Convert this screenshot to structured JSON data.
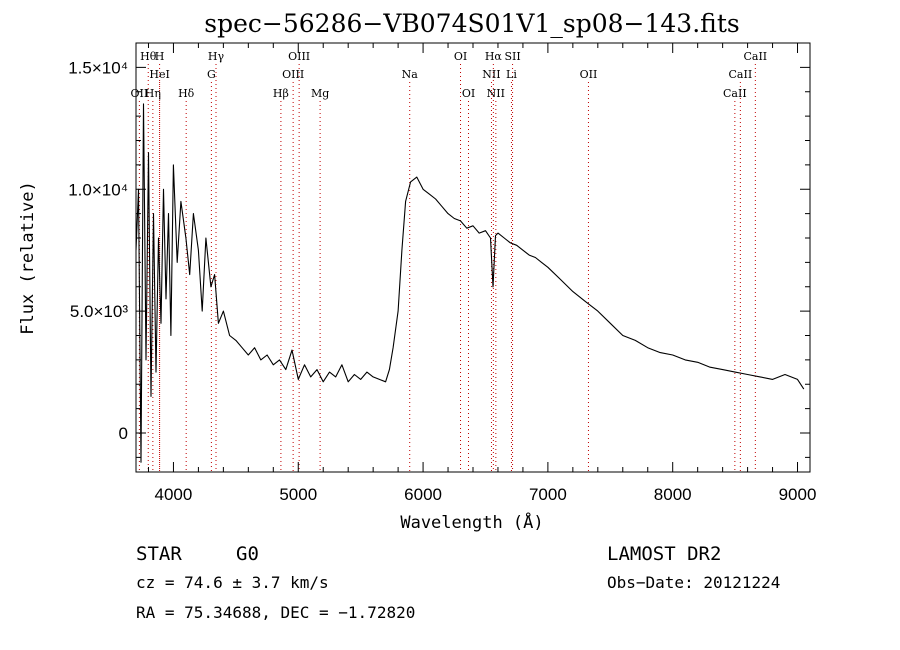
{
  "chart_data": {
    "type": "line",
    "title": "spec−56286−VB074S01V1_sp08−143.fits",
    "xlabel": "Wavelength (Å)",
    "ylabel": "Flux (relative)",
    "xlim": [
      3700,
      9100
    ],
    "ylim": [
      -1600,
      16000
    ],
    "x_ticks": [
      {
        "value": 4000,
        "label": "4000"
      },
      {
        "value": 5000,
        "label": "5000"
      },
      {
        "value": 6000,
        "label": "6000"
      },
      {
        "value": 7000,
        "label": "7000"
      },
      {
        "value": 8000,
        "label": "8000"
      },
      {
        "value": 9000,
        "label": "9000"
      }
    ],
    "y_ticks": [
      {
        "value": 0,
        "label": "0"
      },
      {
        "value": 5000,
        "label": "5.0×10³"
      },
      {
        "value": 10000,
        "label": "1.0×10⁴"
      },
      {
        "value": 15000,
        "label": "1.5×10⁴"
      }
    ],
    "series": [
      {
        "x": [
          3700,
          3720,
          3740,
          3760,
          3780,
          3800,
          3820,
          3840,
          3860,
          3880,
          3900,
          3920,
          3940,
          3960,
          3980,
          4000,
          4030,
          4060,
          4100,
          4130,
          4160,
          4200,
          4230,
          4260,
          4300,
          4330,
          4360,
          4400,
          4450,
          4500,
          4550,
          4600,
          4650,
          4700,
          4750,
          4800,
          4850,
          4900,
          4950,
          5000,
          5050,
          5100,
          5150,
          5200,
          5250,
          5300,
          5350,
          5400,
          5450,
          5500,
          5550,
          5600,
          5650,
          5700,
          5730,
          5760,
          5800,
          5830,
          5860,
          5900,
          5950,
          6000,
          6050,
          6100,
          6150,
          6200,
          6250,
          6300,
          6350,
          6400,
          6450,
          6500,
          6540,
          6560,
          6580,
          6600,
          6650,
          6700,
          6750,
          6800,
          6850,
          6900,
          6950,
          7000,
          7100,
          7200,
          7300,
          7400,
          7500,
          7600,
          7700,
          7800,
          7900,
          8000,
          8100,
          8200,
          8300,
          8400,
          8500,
          8600,
          8700,
          8800,
          8900,
          9000,
          9050
        ],
        "y": [
          7500,
          10000,
          -1200,
          13500,
          3000,
          11500,
          1500,
          9000,
          2500,
          8000,
          4500,
          10000,
          5500,
          9000,
          4000,
          11000,
          7000,
          9500,
          8000,
          6500,
          9000,
          7500,
          5000,
          8000,
          6000,
          6500,
          4500,
          5000,
          4000,
          3800,
          3500,
          3200,
          3500,
          3000,
          3200,
          2800,
          3000,
          2600,
          3400,
          2200,
          2800,
          2300,
          2600,
          2100,
          2500,
          2300,
          2800,
          2100,
          2400,
          2200,
          2500,
          2300,
          2200,
          2100,
          2600,
          3500,
          5000,
          7500,
          9500,
          10300,
          10500,
          10000,
          9800,
          9600,
          9300,
          9000,
          8800,
          8700,
          8400,
          8500,
          8200,
          8300,
          8000,
          6000,
          8100,
          8200,
          8000,
          7800,
          7700,
          7500,
          7300,
          7200,
          7000,
          6800,
          6300,
          5800,
          5400,
          5000,
          4500,
          4000,
          3800,
          3500,
          3300,
          3200,
          3000,
          2900,
          2700,
          2600,
          2500,
          2400,
          2300,
          2200,
          2400,
          2200,
          1800
        ]
      }
    ],
    "lines": [
      {
        "label": "Hθ",
        "wave": 3798,
        "row": 0
      },
      {
        "label": "H",
        "wave": 3889,
        "row": 0
      },
      {
        "label": "Hγ",
        "wave": 4341,
        "row": 0
      },
      {
        "label": "OIII",
        "wave": 5007,
        "row": 0
      },
      {
        "label": "OI",
        "wave": 6300,
        "row": 0
      },
      {
        "label": "Hα",
        "wave": 6563,
        "row": 0
      },
      {
        "label": "SII",
        "wave": 6717,
        "row": 0
      },
      {
        "label": "CaII",
        "wave": 8662,
        "row": 0
      },
      {
        "label": "HeI",
        "wave": 3889,
        "row": 1
      },
      {
        "label": "G",
        "wave": 4304,
        "row": 1
      },
      {
        "label": "OIII",
        "wave": 4959,
        "row": 1
      },
      {
        "label": "Na",
        "wave": 5893,
        "row": 1
      },
      {
        "label": "NII",
        "wave": 6548,
        "row": 1
      },
      {
        "label": "Li",
        "wave": 6708,
        "row": 1
      },
      {
        "label": "OII",
        "wave": 7325,
        "row": 1
      },
      {
        "label": "CaII",
        "wave": 8542,
        "row": 1
      },
      {
        "label": "OII",
        "wave": 3727,
        "row": 2
      },
      {
        "label": "Hη",
        "wave": 3835,
        "row": 2
      },
      {
        "label": "Hδ",
        "wave": 4102,
        "row": 2
      },
      {
        "label": "Hβ",
        "wave": 4861,
        "row": 2
      },
      {
        "label": "Mg",
        "wave": 5175,
        "row": 2
      },
      {
        "label": "OI",
        "wave": 6364,
        "row": 2
      },
      {
        "label": "NII",
        "wave": 6583,
        "row": 2
      },
      {
        "label": "CaII",
        "wave": 8498,
        "row": 2
      }
    ]
  },
  "info": {
    "class_label": "STAR",
    "subclass": "G0",
    "survey": "LAMOST DR2",
    "cz": "cz = 74.6 ± 3.7 km/s",
    "obs_date": "Obs−Date: 20121224",
    "coords": "RA =  75.34688, DEC =  −1.72820"
  }
}
